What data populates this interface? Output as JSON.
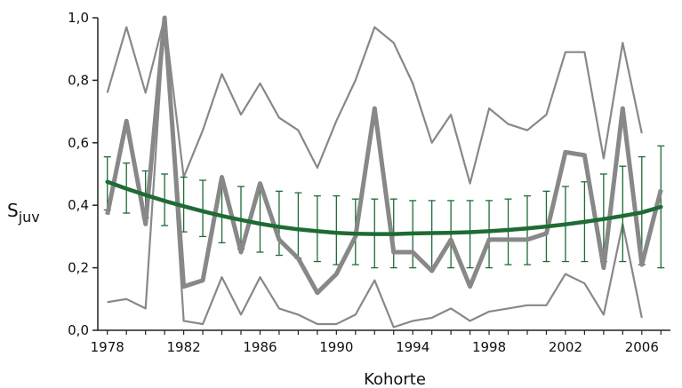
{
  "chart_data": {
    "type": "line",
    "xlabel": "Kohorte",
    "ylabel_main": "S",
    "ylabel_sub": "juv",
    "xlim": [
      1977.5,
      2007.5
    ],
    "ylim": [
      0,
      1.0
    ],
    "xticks": [
      1978,
      1982,
      1986,
      1990,
      1994,
      1998,
      2002,
      2006
    ],
    "xtick_labels": [
      "1978",
      "1982",
      "1986",
      "1990",
      "1994",
      "1998",
      "2002",
      "2006"
    ],
    "yticks": [
      0,
      0.2,
      0.4,
      0.6,
      0.8,
      1.0
    ],
    "ytick_labels": [
      "0,0",
      "0,2",
      "0,4",
      "0,6",
      "0,8",
      "1,0"
    ],
    "colors": {
      "estimate": "#888888",
      "ci": "#888888",
      "trend": "#1e6b35",
      "axis": "#222222"
    },
    "series": [
      {
        "role": "upper-bound",
        "x": [
          1978,
          1979,
          1980,
          1981,
          1982,
          1983,
          1984,
          1985,
          1986,
          1987,
          1988,
          1989,
          1990,
          1991,
          1992,
          1993,
          1994,
          1995,
          1996,
          1997,
          1998,
          1999,
          2000,
          2001,
          2002,
          2003,
          2004,
          2005,
          2006
        ],
        "values": [
          0.76,
          0.97,
          0.76,
          1.0,
          0.49,
          0.64,
          0.82,
          0.69,
          0.79,
          0.68,
          0.64,
          0.52,
          0.67,
          0.8,
          0.97,
          0.92,
          0.79,
          0.6,
          0.69,
          0.47,
          0.71,
          0.66,
          0.64,
          0.69,
          0.89,
          0.89,
          0.55,
          0.92,
          0.63
        ]
      },
      {
        "role": "estimate",
        "x": [
          1978,
          1979,
          1980,
          1981,
          1982,
          1983,
          1984,
          1985,
          1986,
          1987,
          1988,
          1989,
          1990,
          1991,
          1992,
          1993,
          1994,
          1995,
          1996,
          1997,
          1998,
          1999,
          2000,
          2001,
          2002,
          2003,
          2004,
          2005,
          2006,
          2007
        ],
        "values": [
          0.37,
          0.67,
          0.34,
          1.0,
          0.14,
          0.16,
          0.49,
          0.25,
          0.47,
          0.29,
          0.23,
          0.12,
          0.18,
          0.3,
          0.71,
          0.25,
          0.25,
          0.19,
          0.29,
          0.14,
          0.29,
          0.29,
          0.29,
          0.31,
          0.57,
          0.56,
          0.2,
          0.71,
          0.21,
          0.45
        ]
      },
      {
        "role": "lower-bound",
        "x": [
          1978,
          1979,
          1980,
          1981,
          1982,
          1983,
          1984,
          1985,
          1986,
          1987,
          1988,
          1989,
          1990,
          1991,
          1992,
          1993,
          1994,
          1995,
          1996,
          1997,
          1998,
          1999,
          2000,
          2001,
          2002,
          2003,
          2004,
          2005,
          2006
        ],
        "values": [
          0.09,
          0.1,
          0.07,
          1.0,
          0.03,
          0.02,
          0.17,
          0.05,
          0.17,
          0.07,
          0.05,
          0.02,
          0.02,
          0.05,
          0.16,
          0.01,
          0.03,
          0.04,
          0.07,
          0.03,
          0.06,
          0.07,
          0.08,
          0.08,
          0.18,
          0.15,
          0.05,
          0.34,
          0.04
        ]
      }
    ],
    "trend": {
      "x": [
        1978,
        1979,
        1980,
        1981,
        1982,
        1983,
        1984,
        1985,
        1986,
        1987,
        1988,
        1989,
        1990,
        1991,
        1992,
        1993,
        1994,
        1995,
        1996,
        1997,
        1998,
        1999,
        2000,
        2001,
        2002,
        2003,
        2004,
        2005,
        2006,
        2007
      ],
      "values": [
        0.475,
        0.453,
        0.433,
        0.414,
        0.397,
        0.381,
        0.366,
        0.353,
        0.341,
        0.331,
        0.323,
        0.317,
        0.312,
        0.309,
        0.308,
        0.308,
        0.31,
        0.311,
        0.312,
        0.314,
        0.317,
        0.321,
        0.326,
        0.332,
        0.339,
        0.347,
        0.356,
        0.366,
        0.377,
        0.395
      ],
      "lower": [
        0.385,
        0.375,
        0.36,
        0.335,
        0.315,
        0.3,
        0.28,
        0.26,
        0.25,
        0.24,
        0.23,
        0.22,
        0.21,
        0.21,
        0.2,
        0.2,
        0.2,
        0.2,
        0.2,
        0.2,
        0.2,
        0.21,
        0.21,
        0.22,
        0.22,
        0.22,
        0.22,
        0.22,
        0.21,
        0.2
      ],
      "upper": [
        0.555,
        0.535,
        0.51,
        0.5,
        0.49,
        0.48,
        0.47,
        0.46,
        0.455,
        0.445,
        0.44,
        0.43,
        0.43,
        0.42,
        0.42,
        0.42,
        0.415,
        0.415,
        0.415,
        0.415,
        0.415,
        0.42,
        0.43,
        0.445,
        0.46,
        0.475,
        0.5,
        0.525,
        0.555,
        0.59
      ]
    }
  }
}
